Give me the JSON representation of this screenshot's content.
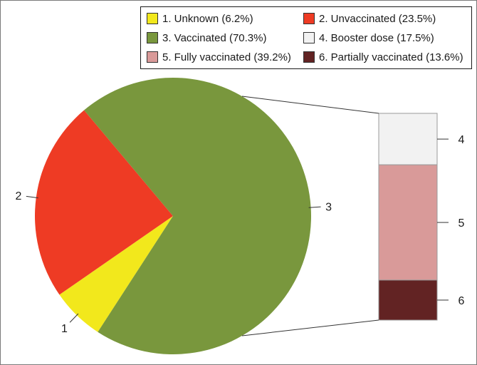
{
  "chart_data": {
    "type": "bar-of-pie",
    "pie": {
      "slices": [
        {
          "id": "1",
          "label": "1. Unknown (6.2%)",
          "value": 6.2,
          "color": "#f2e81c"
        },
        {
          "id": "2",
          "label": "2. Unvaccinated (23.5%)",
          "value": 23.5,
          "color": "#ee3b24"
        },
        {
          "id": "3",
          "label": "3. Vaccinated (70.3%)",
          "value": 70.3,
          "color": "#79973d"
        }
      ]
    },
    "bar": {
      "breakdown_of": "3",
      "segments": [
        {
          "id": "4",
          "label": "4. Booster dose (17.5%)",
          "value": 17.5,
          "color": "#f2f2f2"
        },
        {
          "id": "5",
          "label": "5. Fully vaccinated (39.2%)",
          "value": 39.2,
          "color": "#d99a99"
        },
        {
          "id": "6",
          "label": "6. Partially vaccinated (13.6%)",
          "value": 13.6,
          "color": "#622323"
        }
      ]
    },
    "legend": {
      "placement": "top-right",
      "items": [
        {
          "label": "1. Unknown (6.2%)",
          "color": "#f2e81c"
        },
        {
          "label": "2. Unvaccinated (23.5%)",
          "color": "#ee3b24"
        },
        {
          "label": "3. Vaccinated (70.3%)",
          "color": "#79973d"
        },
        {
          "label": "4. Booster dose (17.5%)",
          "color": "#f2f2f2"
        },
        {
          "label": "5. Fully vaccinated (39.2%)",
          "color": "#d99a99"
        },
        {
          "label": "6. Partially vaccinated (13.6%)",
          "color": "#622323"
        }
      ]
    }
  }
}
